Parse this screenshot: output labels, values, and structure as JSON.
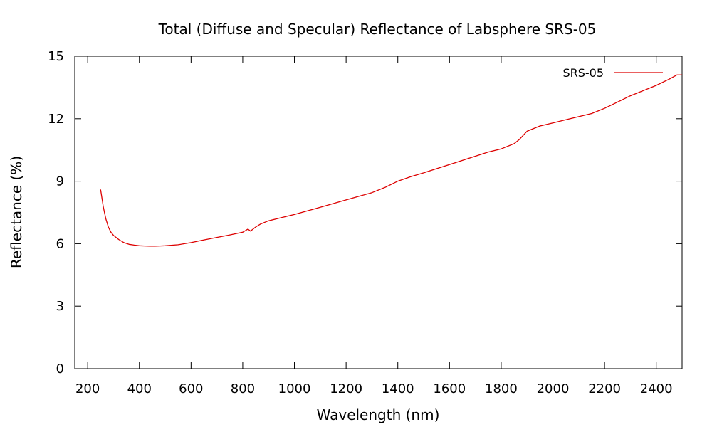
{
  "chart_data": {
    "type": "line",
    "title": "Total (Diffuse and Specular) Reflectance of Labsphere SRS-05",
    "xlabel": "Wavelength (nm)",
    "ylabel": "Reflectance (%)",
    "xlim": [
      150,
      2500
    ],
    "ylim": [
      0,
      15
    ],
    "xticks": [
      200,
      400,
      600,
      800,
      1000,
      1200,
      1400,
      1600,
      1800,
      2000,
      2200,
      2400
    ],
    "yticks": [
      0,
      3,
      6,
      9,
      12,
      15
    ],
    "grid": false,
    "legend_position": "top-right",
    "series": [
      {
        "name": "SRS-05",
        "color": "#dd0000",
        "x": [
          250,
          255,
          260,
          265,
          270,
          280,
          290,
          300,
          320,
          340,
          360,
          380,
          400,
          420,
          440,
          460,
          480,
          500,
          550,
          600,
          650,
          700,
          750,
          800,
          820,
          830,
          850,
          870,
          900,
          950,
          1000,
          1100,
          1200,
          1300,
          1350,
          1400,
          1450,
          1500,
          1550,
          1600,
          1700,
          1750,
          1800,
          1850,
          1870,
          1900,
          1950,
          2000,
          2050,
          2100,
          2150,
          2200,
          2250,
          2300,
          2350,
          2400,
          2450,
          2480,
          2500
        ],
        "values": [
          8.6,
          8.2,
          7.8,
          7.5,
          7.2,
          6.8,
          6.55,
          6.4,
          6.2,
          6.05,
          5.97,
          5.93,
          5.9,
          5.89,
          5.88,
          5.88,
          5.89,
          5.9,
          5.95,
          6.05,
          6.18,
          6.3,
          6.42,
          6.55,
          6.7,
          6.6,
          6.8,
          6.95,
          7.1,
          7.25,
          7.4,
          7.75,
          8.1,
          8.45,
          8.7,
          9.0,
          9.22,
          9.4,
          9.6,
          9.8,
          10.2,
          10.4,
          10.55,
          10.8,
          11.0,
          11.4,
          11.65,
          11.8,
          11.95,
          12.1,
          12.25,
          12.5,
          12.8,
          13.1,
          13.35,
          13.6,
          13.9,
          14.1,
          14.1
        ]
      }
    ]
  }
}
